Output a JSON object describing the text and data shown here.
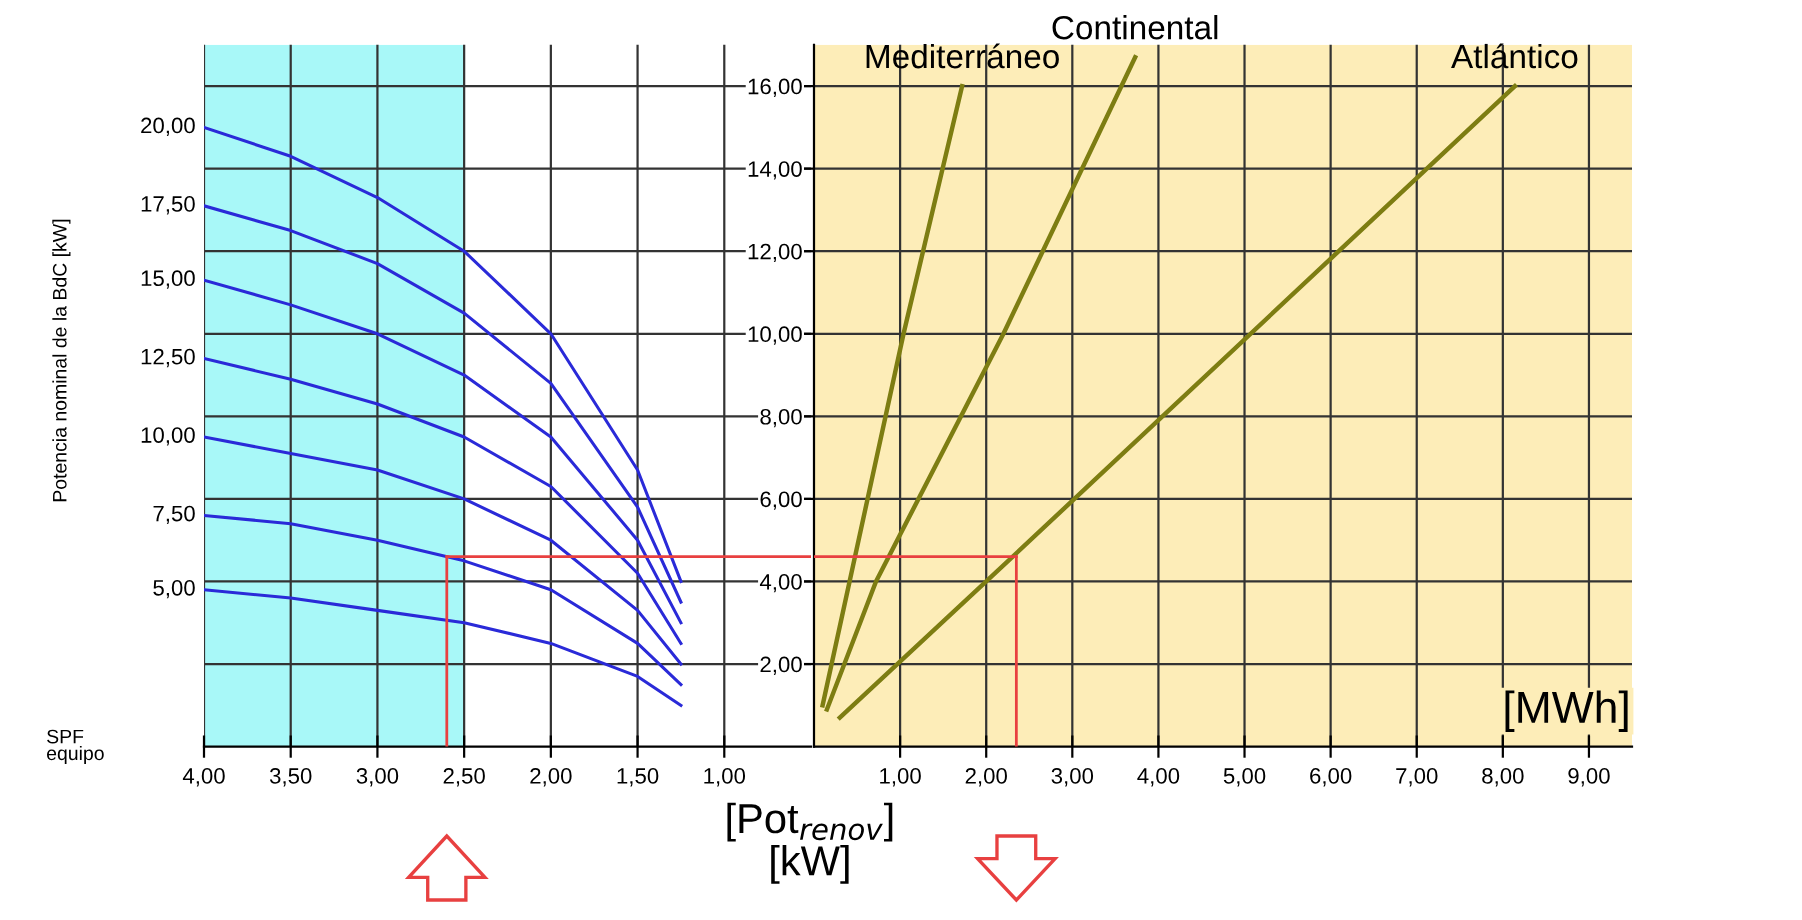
{
  "chart_data": [
    {
      "type": "line",
      "xlabel": "SPF\nequipo",
      "ylabel": "Potencia nominal de la BdC [kW]",
      "x": [
        4.0,
        3.5,
        3.0,
        2.5,
        2.0,
        1.5,
        1.25
      ],
      "series": [
        {
          "name": "20,00",
          "color": "#2a2ad8",
          "values": [
            15.0,
            14.3,
            13.3,
            12.0,
            10.0,
            6.7,
            4.0
          ]
        },
        {
          "name": "17,50",
          "color": "#2a2ad8",
          "values": [
            13.1,
            12.5,
            11.7,
            10.5,
            8.8,
            5.8,
            3.5
          ]
        },
        {
          "name": "15,00",
          "color": "#2a2ad8",
          "values": [
            11.3,
            10.7,
            10.0,
            9.0,
            7.5,
            5.0,
            3.0
          ]
        },
        {
          "name": "12,50",
          "color": "#2a2ad8",
          "values": [
            9.4,
            8.9,
            8.3,
            7.5,
            6.3,
            4.2,
            2.5
          ]
        },
        {
          "name": "10,00",
          "color": "#2a2ad8",
          "values": [
            7.5,
            7.1,
            6.7,
            6.0,
            5.0,
            3.3,
            2.0
          ]
        },
        {
          "name": "7,50",
          "color": "#2a2ad8",
          "values": [
            5.6,
            5.4,
            5.0,
            4.5,
            3.8,
            2.5,
            1.5
          ]
        },
        {
          "name": "5,00",
          "color": "#2a2ad8",
          "values": [
            3.8,
            3.6,
            3.3,
            3.0,
            2.5,
            1.7,
            1.0
          ]
        }
      ],
      "xlim": [
        4.0,
        0.5
      ],
      "ylim": [
        0,
        17
      ],
      "xticks": [
        {
          "value": 4.0,
          "label": "4,00"
        },
        {
          "value": 3.5,
          "label": "3,50"
        },
        {
          "value": 3.0,
          "label": "3,00"
        },
        {
          "value": 2.5,
          "label": "2,50"
        },
        {
          "value": 2.0,
          "label": "2,00"
        },
        {
          "value": 1.5,
          "label": "1,50"
        },
        {
          "value": 1.0,
          "label": "1,00"
        }
      ],
      "yticks": [
        {
          "value": 2,
          "label": "2,00"
        },
        {
          "value": 4,
          "label": "4,00"
        },
        {
          "value": 6,
          "label": "6,00"
        },
        {
          "value": 8,
          "label": "8,00"
        },
        {
          "value": 10,
          "label": "10,00"
        },
        {
          "value": 12,
          "label": "12,00"
        },
        {
          "value": 14,
          "label": "14,00"
        },
        {
          "value": 16,
          "label": "16,00"
        }
      ],
      "grid": true,
      "legend": false,
      "bands": [
        {
          "axis": "x",
          "from": 4.0,
          "to": 2.5,
          "color": "#a8f8f8"
        }
      ],
      "ref_lines": [
        {
          "axis": "x",
          "value": 2.6,
          "color": "#e84040"
        },
        {
          "axis": "y",
          "value": 4.6,
          "color": "#e84040"
        }
      ]
    },
    {
      "type": "line",
      "xlabel": "[MWh]",
      "ylabel": "[Pot$_{renov}$]\n[kW]",
      "series": [
        {
          "name": "Mediterráneo",
          "color": "#7d7d12",
          "x": [
            0.1,
            1.04,
            1.72
          ],
          "values": [
            1.0,
            10.0,
            16.0
          ]
        },
        {
          "name": "Continental",
          "color": "#7d7d12",
          "x": [
            0.15,
            0.72,
            2.2,
            3.73
          ],
          "values": [
            0.9,
            4.0,
            10.0,
            16.7
          ]
        },
        {
          "name": "Atlántico",
          "color": "#7d7d12",
          "x": [
            0.3,
            2.0,
            8.14
          ],
          "values": [
            0.7,
            4.0,
            16.0
          ]
        }
      ],
      "xlim": [
        0,
        9.5
      ],
      "ylim": [
        0,
        17
      ],
      "xticks": [
        {
          "value": 1,
          "label": "1,00"
        },
        {
          "value": 2,
          "label": "2,00"
        },
        {
          "value": 3,
          "label": "3,00"
        },
        {
          "value": 4,
          "label": "4,00"
        },
        {
          "value": 5,
          "label": "5,00"
        },
        {
          "value": 6,
          "label": "6,00"
        },
        {
          "value": 7,
          "label": "7,00"
        },
        {
          "value": 8,
          "label": "8,00"
        },
        {
          "value": 9,
          "label": "9,00"
        }
      ],
      "yticks": [
        2,
        4,
        6,
        8,
        10,
        12,
        14,
        16
      ],
      "tick_labels": "x",
      "grid": true,
      "legend": false,
      "bands": [
        {
          "axis": "x",
          "from": 0,
          "to": 9.5,
          "color": "#fdedb8"
        }
      ],
      "ref_lines": [
        {
          "axis": "y",
          "value": 4.6,
          "color": "#e84040"
        },
        {
          "axis": "x",
          "value": 2.35,
          "color": "#e84040"
        }
      ]
    }
  ]
}
